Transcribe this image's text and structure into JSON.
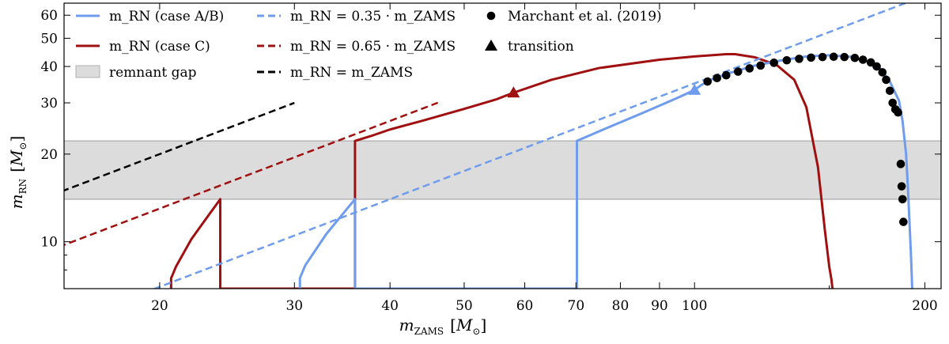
{
  "chart_data": {
    "type": "line",
    "xscale": "log",
    "yscale": "log",
    "xlim": [
      15,
      210
    ],
    "ylim": [
      6.9,
      66
    ],
    "xlabel": "m_ZAMS [M_⊙]",
    "ylabel": "m_RN [M_⊙]",
    "xticks": [
      20,
      30,
      40,
      50,
      60,
      70,
      80,
      90,
      100,
      200
    ],
    "xticklabels": [
      "20",
      "30",
      "40",
      "50",
      "60",
      "70",
      "80",
      "90",
      "100",
      "200"
    ],
    "yticks": [
      10,
      20,
      30,
      40,
      50,
      60
    ],
    "yticklabels": [
      "10",
      "20",
      "30",
      "40",
      "50",
      "60"
    ],
    "remnant_gap": [
      14,
      22.2
    ],
    "colors": {
      "caseAB": "#6f9ced",
      "caseC": "#a01010",
      "gap_fill": "#dcdcdc",
      "gap_edge": "#b0b0b0",
      "black": "#000000"
    },
    "series": [
      {
        "name": "caseC",
        "kind": "solid",
        "x": [
          20.7,
          20.7,
          20.75,
          21,
          22,
          23,
          24,
          24,
          36,
          36,
          36,
          38,
          40,
          44,
          50,
          55,
          58,
          65,
          75,
          90,
          100,
          110,
          113,
          120,
          128,
          135,
          140,
          145,
          148,
          150,
          151,
          151.3,
          151.5
        ],
        "y": [
          6.9,
          7.5,
          7.6,
          8.2,
          10.2,
          12,
          14,
          6.9,
          6.9,
          22.2,
          22.2,
          23.2,
          24.3,
          26,
          28.6,
          30.8,
          32.5,
          36,
          39.5,
          42.2,
          43.3,
          44.1,
          44.1,
          43,
          40.5,
          36,
          29,
          18,
          11,
          8.2,
          7.4,
          7.05,
          6.9
        ]
      },
      {
        "name": "caseAB",
        "kind": "solid",
        "x": [
          30.5,
          30.5,
          31,
          33,
          35,
          36,
          36,
          70.2,
          70.2,
          76,
          85,
          95,
          100,
          102,
          105,
          110,
          115,
          120,
          130,
          140,
          150,
          160,
          170,
          175,
          180,
          185,
          187,
          189,
          190,
          191,
          191.8,
          192.2,
          192.5
        ],
        "y": [
          6.9,
          7.5,
          8.3,
          10.6,
          12.8,
          14,
          6.9,
          6.9,
          22.2,
          24.3,
          27.5,
          31.2,
          33.2,
          34.5,
          36,
          37.7,
          39,
          40.3,
          42,
          43.3,
          43.7,
          43.2,
          41.2,
          39.3,
          35.5,
          30.5,
          26,
          20,
          15.5,
          11.5,
          9,
          7.8,
          6.9
        ]
      },
      {
        "name": "ref035",
        "kind": "dashed",
        "color": "caseAB",
        "x": [
          17.35,
          189.1
        ],
        "y": [
          6.0726,
          66.185
        ]
      },
      {
        "name": "ref065",
        "kind": "dashed",
        "color": "caseC",
        "x": [
          14.77,
          46.2
        ],
        "y": [
          9.6005,
          30.03
        ]
      },
      {
        "name": "ref1",
        "kind": "dashed",
        "color": "black",
        "x": [
          14.9,
          30.0
        ],
        "y": [
          14.9,
          30.0
        ]
      }
    ],
    "marchant_points": {
      "x": [
        104,
        107,
        110,
        114,
        118,
        122,
        127,
        132,
        137,
        142,
        147,
        152,
        157,
        162,
        166,
        170,
        173,
        176,
        178,
        180,
        181.5,
        183,
        184.5,
        186,
        186.5,
        187,
        187.5
      ],
      "y": [
        35.5,
        36.5,
        37.3,
        38.4,
        39.4,
        40.3,
        41.2,
        42.0,
        42.5,
        42.9,
        43.1,
        43.2,
        43.1,
        42.8,
        42.2,
        41.3,
        40.0,
        38.2,
        36.0,
        33.0,
        30.0,
        28.5,
        27.8,
        18.5,
        15.5,
        14.0,
        11.7
      ]
    },
    "transitions": [
      {
        "color": "caseC",
        "x": 58,
        "y": 32.5
      },
      {
        "color": "caseAB",
        "x": 100,
        "y": 33.2
      }
    ],
    "legend": [
      {
        "label": "m_RN (case A/B)",
        "style": "solid",
        "color": "caseAB"
      },
      {
        "label": "m_RN (case C)",
        "style": "solid",
        "color": "caseC"
      },
      {
        "label": "remnant gap",
        "style": "patch",
        "color": "gap_fill"
      },
      {
        "label": "m_RN = 0.35 · m_ZAMS",
        "style": "dashed",
        "color": "caseAB"
      },
      {
        "label": "m_RN = 0.65 · m_ZAMS",
        "style": "dashed",
        "color": "caseC"
      },
      {
        "label": "m_RN = m_ZAMS",
        "style": "dashed",
        "color": "black"
      },
      {
        "label": "Marchant et al. (2019)",
        "style": "circle",
        "color": "black"
      },
      {
        "label": "transition",
        "style": "triangle",
        "color": "black"
      }
    ]
  }
}
